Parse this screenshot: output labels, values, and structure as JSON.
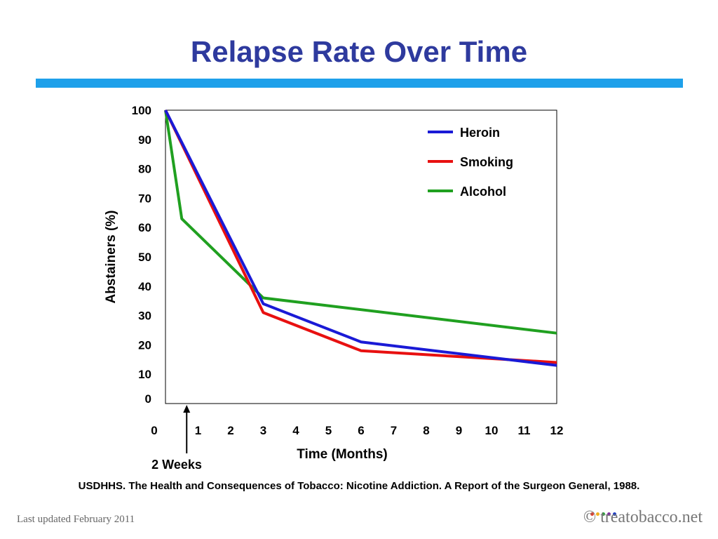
{
  "page": {
    "title": "Relapse Rate Over Time",
    "source": "USDHHS. The Health and Consequences of Tobacco: Nicotine Addiction.  A Report of the Surgeon General, 1988.",
    "footer_left": "Last updated February 2011",
    "footer_right": "© treatobacco.net",
    "rule_color": "#1ea0ea",
    "title_color": "#2e3a9e",
    "logo_dot_colors": [
      "#e04030",
      "#f0b020",
      "#30a040",
      "#8030a0",
      "#2040c0"
    ]
  },
  "chart_data": {
    "type": "line",
    "title": "",
    "xlabel": "Time (Months)",
    "ylabel": "Abstainers (%)",
    "xlim": [
      0,
      12
    ],
    "ylim": [
      0,
      100
    ],
    "xticks": [
      0,
      1,
      2,
      3,
      4,
      5,
      6,
      7,
      8,
      9,
      10,
      11,
      12
    ],
    "yticks": [
      0,
      10,
      20,
      30,
      40,
      50,
      60,
      70,
      80,
      90,
      100
    ],
    "grid": false,
    "legend_position": "top-right",
    "annotation": {
      "label": "2 Weeks",
      "x": 0.5
    },
    "series": [
      {
        "name": "Heroin",
        "color": "#1a1ad6",
        "x": [
          0,
          3,
          6,
          12
        ],
        "y": [
          100,
          34,
          21,
          13
        ]
      },
      {
        "name": "Smoking",
        "color": "#e81010",
        "x": [
          0,
          3,
          6,
          12
        ],
        "y": [
          100,
          31,
          18,
          14
        ]
      },
      {
        "name": "Alcohol",
        "color": "#20a020",
        "x": [
          0,
          0.5,
          3,
          12
        ],
        "y": [
          100,
          63,
          36,
          24
        ]
      }
    ]
  }
}
